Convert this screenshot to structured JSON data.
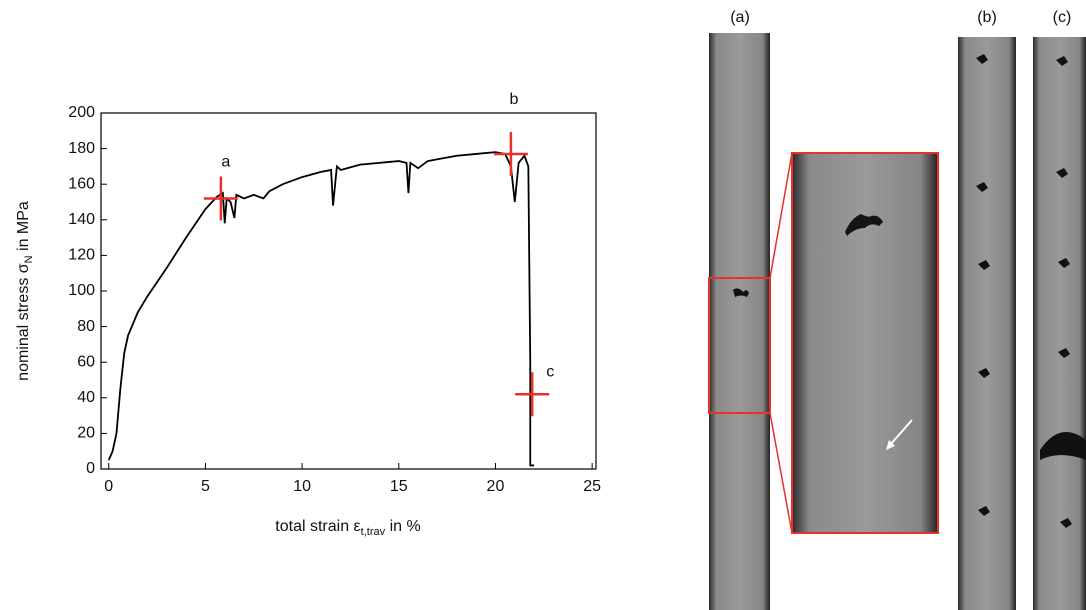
{
  "chart_data": {
    "type": "line",
    "xlabel": {
      "text": "total strain ε",
      "sub": "t,trav",
      "rest": " in %"
    },
    "ylabel": {
      "text": "nominal stress σ",
      "sub": "N",
      "rest": " in MPa"
    },
    "xlim": [
      -0.4,
      25.2
    ],
    "xticks": [
      0,
      5,
      10,
      15,
      20,
      25
    ],
    "ylim": [
      0,
      200
    ],
    "yticks": [
      0,
      20,
      40,
      60,
      80,
      100,
      120,
      140,
      160,
      180,
      200
    ],
    "series": [
      {
        "color": "#000000",
        "x": [
          0,
          0.2,
          0.4,
          0.6,
          0.8,
          1,
          1.5,
          2,
          3,
          4,
          5,
          5.6,
          5.9,
          6,
          6.1,
          6.3,
          6.5,
          6.6,
          7,
          7.5,
          8,
          8.3,
          9,
          10,
          11,
          11.5,
          11.6,
          11.8,
          12,
          13,
          14,
          15,
          15.4,
          15.5,
          15.6,
          16,
          16.5,
          17,
          18,
          19,
          20,
          20.5,
          20.8,
          21,
          21.2,
          21.5,
          21.7,
          21.8,
          21.8,
          22
        ],
        "values": [
          5,
          10,
          20,
          45,
          65,
          75,
          88,
          97,
          113,
          130,
          146,
          153,
          155,
          138,
          152,
          150,
          141,
          154,
          152,
          154,
          152,
          156,
          160,
          164,
          167,
          168,
          148,
          170,
          168,
          171,
          172,
          173,
          172,
          155,
          172,
          169,
          173,
          174,
          176,
          177,
          178,
          177,
          170,
          150,
          172,
          176,
          170,
          60,
          2,
          2
        ]
      }
    ],
    "points": {
      "color": "#e8312a",
      "x": [
        5.8,
        20.8,
        21.9
      ],
      "y": [
        152,
        177,
        42
      ],
      "labels": [
        "a",
        "b",
        "c"
      ]
    }
  },
  "images": [
    {
      "label": "(a)"
    },
    {
      "label": "(b)"
    },
    {
      "label": "(c)"
    }
  ]
}
